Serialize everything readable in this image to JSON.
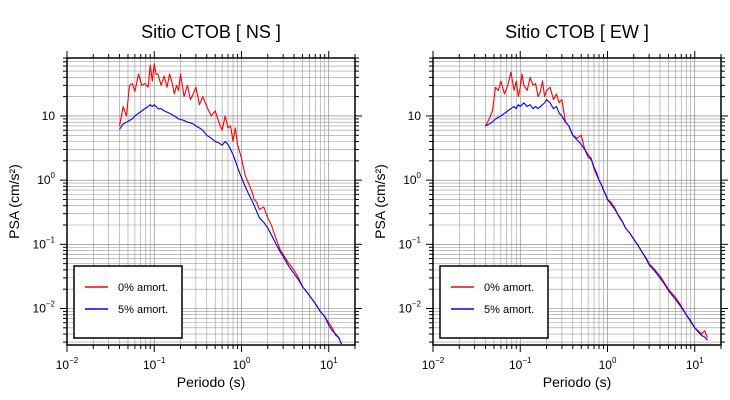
{
  "chart_data": [
    {
      "type": "line",
      "title": "Sitio CTOB [ NS ]",
      "xlabel": "Periodo (s)",
      "ylabel": "PSA (cm/s²)",
      "xscale": "log",
      "yscale": "log",
      "xlim": [
        0.01,
        20
      ],
      "ylim": [
        0.0027,
        80
      ],
      "grid": true,
      "legend_position": "bottom-left",
      "x_ticks": [
        {
          "value": 0.01,
          "base": "10",
          "exp": "−2"
        },
        {
          "value": 0.1,
          "base": "10",
          "exp": "−1"
        },
        {
          "value": 1,
          "base": "10",
          "exp": "0"
        },
        {
          "value": 10,
          "base": "10",
          "exp": "1"
        }
      ],
      "y_ticks": [
        {
          "value": 0.01,
          "base": "10",
          "exp": "−2"
        },
        {
          "value": 0.1,
          "base": "10",
          "exp": "−1"
        },
        {
          "value": 1,
          "base": "10",
          "exp": "0"
        },
        {
          "value": 10,
          "base": "10",
          "exp": ""
        }
      ],
      "series": [
        {
          "name": "0% amort.",
          "color": "#ff0000",
          "x": [
            0.04,
            0.044,
            0.048,
            0.052,
            0.056,
            0.06,
            0.066,
            0.072,
            0.078,
            0.085,
            0.09,
            0.095,
            0.1,
            0.105,
            0.11,
            0.12,
            0.13,
            0.14,
            0.15,
            0.16,
            0.17,
            0.18,
            0.19,
            0.2,
            0.22,
            0.24,
            0.26,
            0.28,
            0.3,
            0.33,
            0.36,
            0.4,
            0.45,
            0.5,
            0.55,
            0.6,
            0.65,
            0.7,
            0.75,
            0.8,
            0.85,
            0.9,
            0.95,
            1.0,
            1.1,
            1.2,
            1.3,
            1.4,
            1.5,
            1.6,
            1.8,
            2.0,
            2.2,
            2.5,
            2.8,
            3.0,
            3.5,
            4.0,
            4.5,
            5.0,
            6.0,
            7.0,
            8.0,
            9.0,
            10.0,
            11.0,
            12.0,
            13.0,
            14.0
          ],
          "y": [
            7,
            14,
            10,
            30,
            32,
            24,
            45,
            30,
            32,
            28,
            62,
            35,
            65,
            44,
            45,
            30,
            42,
            28,
            45,
            33,
            22,
            30,
            25,
            45,
            20,
            30,
            18,
            22,
            28,
            15,
            20,
            14,
            10,
            12,
            8,
            6,
            10,
            6.5,
            7,
            4,
            6.5,
            3.6,
            2.8,
            2.2,
            1.2,
            0.9,
            0.7,
            0.5,
            0.45,
            0.35,
            0.38,
            0.26,
            0.2,
            0.12,
            0.08,
            0.07,
            0.05,
            0.04,
            0.03,
            0.022,
            0.016,
            0.012,
            0.009,
            0.0075,
            0.006,
            0.005,
            0.0038,
            0.0036,
            0.0028
          ]
        },
        {
          "name": "5% amort.",
          "color": "#0000ff",
          "x": [
            0.04,
            0.044,
            0.048,
            0.052,
            0.056,
            0.06,
            0.066,
            0.072,
            0.078,
            0.085,
            0.09,
            0.095,
            0.1,
            0.105,
            0.11,
            0.12,
            0.13,
            0.14,
            0.15,
            0.16,
            0.17,
            0.18,
            0.19,
            0.2,
            0.22,
            0.24,
            0.26,
            0.28,
            0.3,
            0.33,
            0.36,
            0.4,
            0.45,
            0.5,
            0.55,
            0.6,
            0.65,
            0.7,
            0.75,
            0.8,
            0.85,
            0.9,
            0.95,
            1.0,
            1.1,
            1.2,
            1.3,
            1.4,
            1.5,
            1.6,
            1.8,
            2.0,
            2.2,
            2.5,
            2.8,
            3.0,
            3.5,
            4.0,
            4.5,
            5.0,
            6.0,
            7.0,
            8.0,
            9.0,
            10.0,
            11.0,
            12.0,
            13.0,
            14.0
          ],
          "y": [
            6.2,
            7.5,
            8,
            8.5,
            9,
            10,
            11,
            12,
            13,
            14,
            15,
            14,
            15,
            14,
            13,
            13,
            12,
            11.5,
            11,
            10.5,
            10,
            9.5,
            9,
            8.8,
            8.5,
            8,
            7.8,
            7.5,
            7,
            6.5,
            6,
            5,
            4.5,
            4,
            3.8,
            3.5,
            4,
            3.6,
            3,
            2.5,
            2,
            1.6,
            1.3,
            1.1,
            0.8,
            0.62,
            0.5,
            0.4,
            0.32,
            0.26,
            0.22,
            0.18,
            0.14,
            0.1,
            0.075,
            0.065,
            0.045,
            0.035,
            0.028,
            0.022,
            0.016,
            0.012,
            0.009,
            0.0075,
            0.0055,
            0.0045,
            0.004,
            0.0035,
            0.0028
          ]
        }
      ]
    },
    {
      "type": "line",
      "title": "Sitio CTOB [ EW ]",
      "xlabel": "Periodo (s)",
      "ylabel": "PSA (cm/s²)",
      "xscale": "log",
      "yscale": "log",
      "xlim": [
        0.01,
        20
      ],
      "ylim": [
        0.0027,
        80
      ],
      "grid": true,
      "legend_position": "bottom-left",
      "x_ticks": [
        {
          "value": 0.01,
          "base": "10",
          "exp": "−2"
        },
        {
          "value": 0.1,
          "base": "10",
          "exp": "−1"
        },
        {
          "value": 1,
          "base": "10",
          "exp": "0"
        },
        {
          "value": 10,
          "base": "10",
          "exp": "1"
        }
      ],
      "y_ticks": [
        {
          "value": 0.01,
          "base": "10",
          "exp": "−2"
        },
        {
          "value": 0.1,
          "base": "10",
          "exp": "−1"
        },
        {
          "value": 1,
          "base": "10",
          "exp": "0"
        },
        {
          "value": 10,
          "base": "10",
          "exp": ""
        }
      ],
      "series": [
        {
          "name": "0% amort.",
          "color": "#ff0000",
          "x": [
            0.04,
            0.044,
            0.048,
            0.052,
            0.056,
            0.06,
            0.066,
            0.072,
            0.078,
            0.085,
            0.09,
            0.095,
            0.1,
            0.105,
            0.11,
            0.12,
            0.13,
            0.14,
            0.15,
            0.16,
            0.17,
            0.18,
            0.19,
            0.2,
            0.22,
            0.24,
            0.26,
            0.28,
            0.3,
            0.33,
            0.36,
            0.4,
            0.45,
            0.5,
            0.55,
            0.6,
            0.65,
            0.7,
            0.75,
            0.8,
            0.85,
            0.9,
            0.95,
            1.0,
            1.1,
            1.2,
            1.3,
            1.4,
            1.5,
            1.6,
            1.8,
            2.0,
            2.2,
            2.5,
            2.8,
            3.0,
            3.5,
            4.0,
            4.5,
            5.0,
            6.0,
            7.0,
            8.0,
            9.0,
            10.0,
            11.0,
            12.0,
            13.0,
            14.0
          ],
          "y": [
            7,
            9,
            12,
            28,
            25,
            35,
            22,
            30,
            48,
            25,
            35,
            20,
            28,
            45,
            30,
            25,
            40,
            30,
            32,
            20,
            24,
            35,
            20,
            25,
            28,
            18,
            22,
            16,
            18,
            8,
            7,
            5,
            4.5,
            5,
            3,
            2.5,
            2.2,
            1.5,
            1.2,
            1.0,
            0.85,
            0.7,
            0.6,
            0.5,
            0.45,
            0.38,
            0.3,
            0.26,
            0.22,
            0.18,
            0.15,
            0.12,
            0.1,
            0.075,
            0.06,
            0.05,
            0.04,
            0.032,
            0.025,
            0.02,
            0.015,
            0.011,
            0.008,
            0.0065,
            0.005,
            0.0045,
            0.004,
            0.0045,
            0.0035
          ]
        },
        {
          "name": "5% amort.",
          "color": "#0000ff",
          "x": [
            0.04,
            0.044,
            0.048,
            0.052,
            0.056,
            0.06,
            0.066,
            0.072,
            0.078,
            0.085,
            0.09,
            0.095,
            0.1,
            0.105,
            0.11,
            0.12,
            0.13,
            0.14,
            0.15,
            0.16,
            0.17,
            0.18,
            0.19,
            0.2,
            0.22,
            0.24,
            0.26,
            0.28,
            0.3,
            0.33,
            0.36,
            0.4,
            0.45,
            0.5,
            0.55,
            0.6,
            0.65,
            0.7,
            0.75,
            0.8,
            0.85,
            0.9,
            0.95,
            1.0,
            1.1,
            1.2,
            1.3,
            1.4,
            1.5,
            1.6,
            1.8,
            2.0,
            2.2,
            2.5,
            2.8,
            3.0,
            3.5,
            4.0,
            4.5,
            5.0,
            6.0,
            7.0,
            8.0,
            9.0,
            10.0,
            11.0,
            12.0,
            13.0,
            14.0
          ],
          "y": [
            7,
            7.5,
            8,
            9,
            9.5,
            10,
            11,
            12,
            13,
            14,
            13,
            15,
            14,
            15,
            16,
            14,
            15,
            13,
            14,
            13,
            14,
            15,
            16,
            18,
            16,
            13,
            14,
            11,
            10,
            8,
            7,
            5,
            4.2,
            3.6,
            3,
            2.3,
            2.1,
            1.6,
            1.3,
            1.0,
            0.85,
            0.7,
            0.6,
            0.5,
            0.42,
            0.36,
            0.3,
            0.25,
            0.22,
            0.18,
            0.15,
            0.12,
            0.1,
            0.075,
            0.058,
            0.048,
            0.038,
            0.03,
            0.024,
            0.019,
            0.014,
            0.0105,
            0.008,
            0.0062,
            0.005,
            0.0043,
            0.0038,
            0.0036,
            0.0032
          ]
        }
      ]
    }
  ]
}
